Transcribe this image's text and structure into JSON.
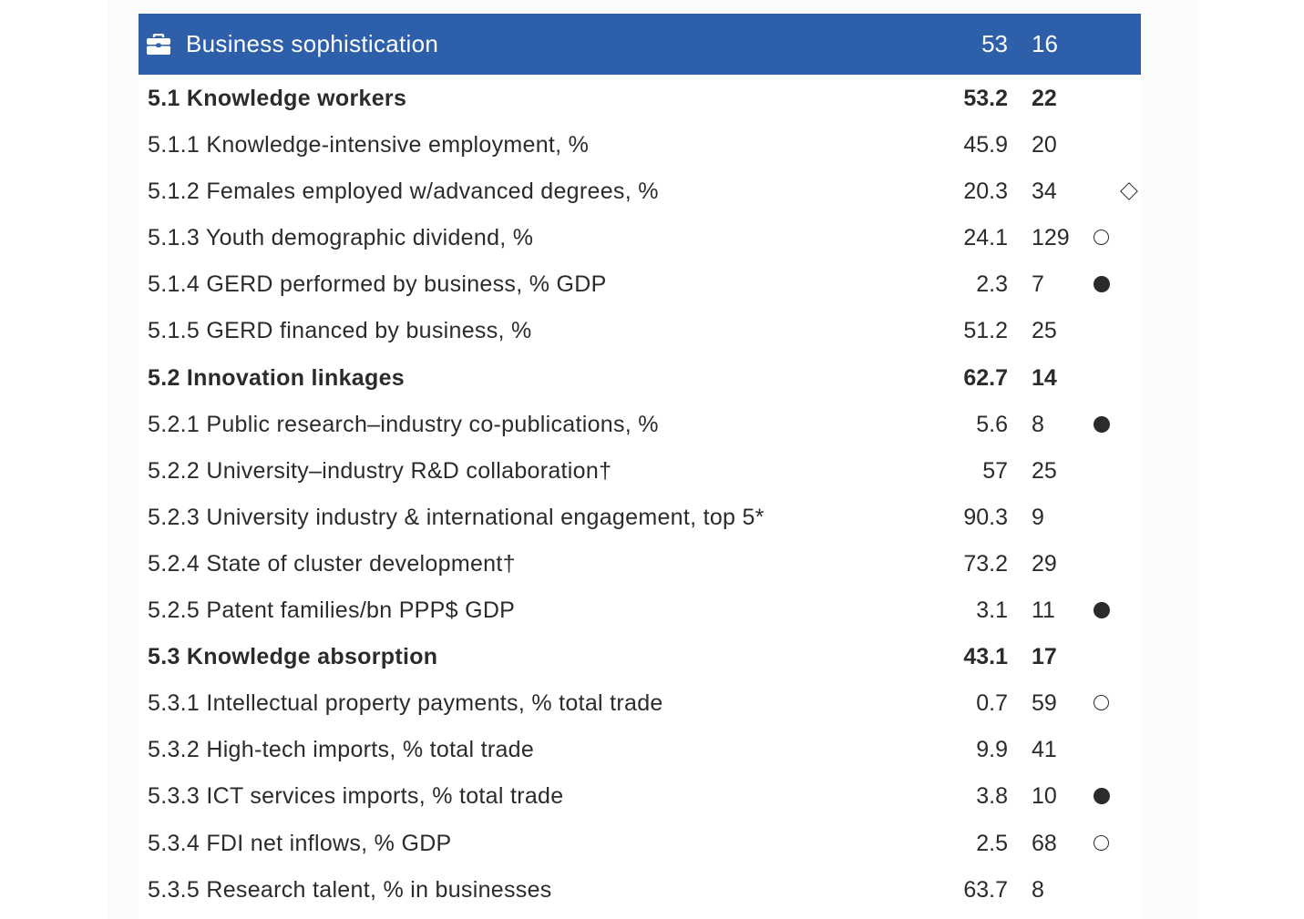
{
  "header": {
    "title": "Business sophistication",
    "score": "53",
    "rank": "16",
    "icon": "briefcase-icon",
    "color": "#2e5faa"
  },
  "rows": [
    {
      "label": "5.1 Knowledge workers",
      "score": "53.2",
      "rank": "22",
      "bold": true,
      "marker": ""
    },
    {
      "label": "5.1.1 Knowledge-intensive employment, %",
      "score": "45.9",
      "rank": "20",
      "bold": false,
      "marker": ""
    },
    {
      "label": "5.1.2 Females employed w/advanced degrees, %",
      "score": "20.3",
      "rank": "34",
      "bold": false,
      "marker": "diamond"
    },
    {
      "label": "5.1.3 Youth demographic dividend, %",
      "score": "24.1",
      "rank": "129",
      "bold": false,
      "marker": "hollow"
    },
    {
      "label": "5.1.4 GERD performed by business, % GDP",
      "score": "2.3",
      "rank": "7",
      "bold": false,
      "marker": "filled"
    },
    {
      "label": "5.1.5 GERD financed by business, %",
      "score": "51.2",
      "rank": "25",
      "bold": false,
      "marker": ""
    },
    {
      "label": "5.2 Innovation linkages",
      "score": "62.7",
      "rank": "14",
      "bold": true,
      "marker": ""
    },
    {
      "label": "5.2.1 Public research–industry co-publications, %",
      "score": "5.6",
      "rank": "8",
      "bold": false,
      "marker": "filled"
    },
    {
      "label": "5.2.2 University–industry R&D collaboration†",
      "score": "57",
      "rank": "25",
      "bold": false,
      "marker": ""
    },
    {
      "label": "5.2.3 University industry & international engagement, top 5*",
      "score": "90.3",
      "rank": "9",
      "bold": false,
      "marker": ""
    },
    {
      "label": "5.2.4 State of cluster development†",
      "score": "73.2",
      "rank": "29",
      "bold": false,
      "marker": ""
    },
    {
      "label": "5.2.5 Patent families/bn PPP$ GDP",
      "score": "3.1",
      "rank": "11",
      "bold": false,
      "marker": "filled"
    },
    {
      "label": "5.3 Knowledge absorption",
      "score": "43.1",
      "rank": "17",
      "bold": true,
      "marker": ""
    },
    {
      "label": "5.3.1 Intellectual property payments, % total trade",
      "score": "0.7",
      "rank": "59",
      "bold": false,
      "marker": "hollow"
    },
    {
      "label": "5.3.2 High-tech imports, % total trade",
      "score": "9.9",
      "rank": "41",
      "bold": false,
      "marker": ""
    },
    {
      "label": "5.3.3 ICT services imports, % total trade",
      "score": "3.8",
      "rank": "10",
      "bold": false,
      "marker": "filled"
    },
    {
      "label": "5.3.4 FDI net inflows, % GDP",
      "score": "2.5",
      "rank": "68",
      "bold": false,
      "marker": "hollow"
    },
    {
      "label": "5.3.5 Research talent, % in businesses",
      "score": "63.7",
      "rank": "8",
      "bold": false,
      "marker": ""
    }
  ]
}
